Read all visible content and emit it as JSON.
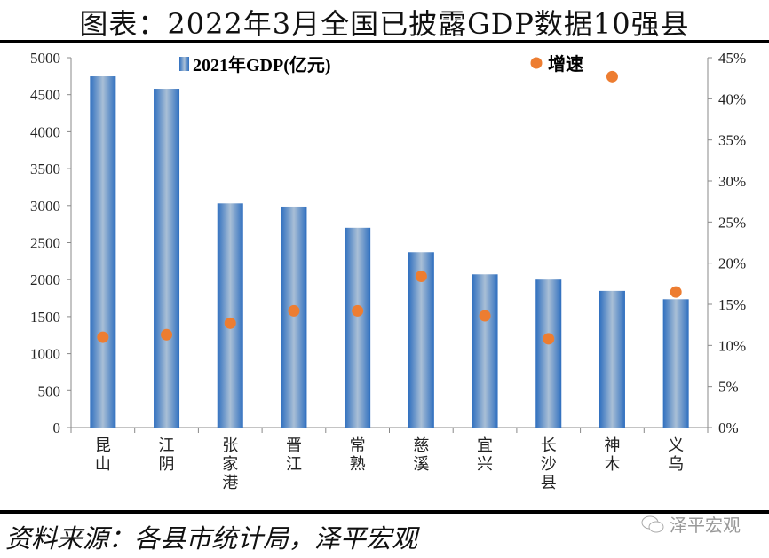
{
  "title": "图表：2022年3月全国已披露GDP数据10强县",
  "source": "资料来源：各县市统计局，泽平宏观",
  "watermark": "泽平宏观",
  "chart_data": {
    "type": "bar+scatter",
    "categories": [
      "昆山",
      "江阴",
      "张家港",
      "晋江",
      "常熟",
      "慈溪",
      "宜兴",
      "长沙县",
      "神木",
      "义乌"
    ],
    "series": [
      {
        "name": "2021年GDP(亿元)",
        "type": "bar",
        "axis": "left",
        "color": "#3a78c0",
        "values": [
          4748,
          4580,
          3030,
          2986,
          2700,
          2371,
          2071,
          2000,
          1848,
          1735
        ]
      },
      {
        "name": "增速",
        "type": "scatter",
        "axis": "right",
        "color": "#ed7d31",
        "values": [
          11.0,
          11.3,
          12.7,
          14.2,
          14.2,
          18.4,
          13.6,
          10.8,
          42.7,
          16.5
        ]
      }
    ],
    "left_ylim": [
      0,
      5000
    ],
    "left_ticks": [
      "0",
      "500",
      "1000",
      "1500",
      "2000",
      "2500",
      "3000",
      "3500",
      "4000",
      "4500",
      "5000"
    ],
    "right_ylim": [
      0,
      45
    ],
    "right_ticks": [
      "0%",
      "5%",
      "10%",
      "15%",
      "20%",
      "25%",
      "30%",
      "35%",
      "40%",
      "45%"
    ],
    "grid": false,
    "legend": "top"
  }
}
